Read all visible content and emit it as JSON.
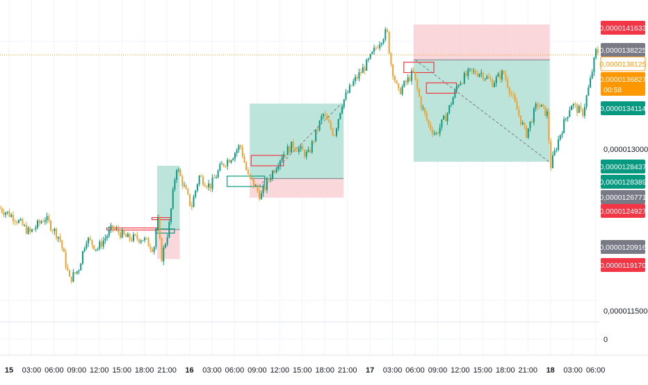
{
  "chart_data": {
    "type": "candlestick",
    "x_ticks": [
      {
        "label": "15",
        "hour": 0,
        "day": true
      },
      {
        "label": "03:00",
        "hour": 3
      },
      {
        "label": "06:00",
        "hour": 6
      },
      {
        "label": "09:00",
        "hour": 9
      },
      {
        "label": "12:00",
        "hour": 12
      },
      {
        "label": "15:00",
        "hour": 15
      },
      {
        "label": "18:00",
        "hour": 18
      },
      {
        "label": "21:00",
        "hour": 21
      },
      {
        "label": "16",
        "hour": 24,
        "day": true
      },
      {
        "label": "03:00",
        "hour": 27
      },
      {
        "label": "06:00",
        "hour": 30
      },
      {
        "label": "09:00",
        "hour": 33
      },
      {
        "label": "12:00",
        "hour": 36
      },
      {
        "label": "15:00",
        "hour": 39
      },
      {
        "label": "18:00",
        "hour": 42
      },
      {
        "label": "21:00",
        "hour": 45
      },
      {
        "label": "17",
        "hour": 48,
        "day": true
      },
      {
        "label": "03:00",
        "hour": 51
      },
      {
        "label": "06:00",
        "hour": 54
      },
      {
        "label": "09:00",
        "hour": 57
      },
      {
        "label": "12:00",
        "hour": 60
      },
      {
        "label": "15:00",
        "hour": 63
      },
      {
        "label": "18:00",
        "hour": 66
      },
      {
        "label": "21:00",
        "hour": 69
      },
      {
        "label": "18",
        "hour": 72,
        "day": true
      },
      {
        "label": "03:00",
        "hour": 75
      },
      {
        "label": "06:00",
        "hour": 78
      }
    ],
    "y_ticks": [
      {
        "label": "0,0000115000",
        "value": 1.15e-05
      },
      {
        "label": "0,0000130000",
        "value": 1.3e-05
      },
      {
        "label": "0",
        "value": 0
      }
    ],
    "price_labels": [
      {
        "label": "0,0000141633",
        "value": 1.41633e-05,
        "color": "#f23645"
      },
      {
        "label": "0,0000138225",
        "value": 1.38225e-05,
        "color": "#787b86"
      },
      {
        "label": "0,0000138125",
        "value": 1.38125e-05,
        "color": "#ffffff",
        "text_color": "#ff9800"
      },
      {
        "label": "0,0000136827",
        "value": 1.36827e-05,
        "color": "#ff9800",
        "sub": "00:58"
      },
      {
        "label": "0,0000134114",
        "value": 1.34114e-05,
        "color": "#089981"
      },
      {
        "label": "0,0000128437",
        "value": 1.28437e-05,
        "color": "#089981"
      },
      {
        "label": "0,0000128389",
        "value": 1.28389e-05,
        "color": "#089981"
      },
      {
        "label": "0,0000126771",
        "value": 1.26771e-05,
        "color": "#787b86"
      },
      {
        "label": "0,0000124927",
        "value": 1.24927e-05,
        "color": "#f23645"
      },
      {
        "label": "0,0000120916",
        "value": 1.20916e-05,
        "color": "#787b86"
      },
      {
        "label": "0,0000119170",
        "value": 1.1917e-05,
        "color": "#f23645"
      }
    ],
    "y_range": [
      1.13e-05,
      1.44e-05
    ],
    "x_range_hours": [
      -1.2,
      78.5
    ],
    "current_price": 1.36827e-05,
    "price_path": [
      [
        -1.2,
        1.24e-05
      ],
      [
        1.0,
        1.23e-05
      ],
      [
        3.0,
        1.215e-05
      ],
      [
        5.0,
        1.23e-05
      ],
      [
        7.0,
        1.21e-05
      ],
      [
        8.3,
        1.17e-05
      ],
      [
        9.5,
        1.18e-05
      ],
      [
        10.5,
        1.21e-05
      ],
      [
        12.0,
        1.2e-05
      ],
      [
        14.0,
        1.22e-05
      ],
      [
        16.0,
        1.21e-05
      ],
      [
        18.0,
        1.21e-05
      ],
      [
        19.5,
        1.2e-05
      ],
      [
        20.0,
        1.23e-05
      ],
      [
        20.5,
        1.19e-05
      ],
      [
        21.5,
        1.22e-05
      ],
      [
        22.5,
        1.28e-05
      ],
      [
        23.5,
        1.26e-05
      ],
      [
        24.5,
        1.24e-05
      ],
      [
        25.5,
        1.27e-05
      ],
      [
        27.0,
        1.26e-05
      ],
      [
        28.5,
        1.28e-05
      ],
      [
        30.0,
        1.29e-05
      ],
      [
        31.0,
        1.3e-05
      ],
      [
        32.0,
        1.27e-05
      ],
      [
        33.0,
        1.26e-05
      ],
      [
        33.7,
        1.25e-05
      ],
      [
        35.0,
        1.27e-05
      ],
      [
        36.5,
        1.29e-05
      ],
      [
        38.0,
        1.3e-05
      ],
      [
        40.0,
        1.29e-05
      ],
      [
        42.0,
        1.33e-05
      ],
      [
        43.5,
        1.31e-05
      ],
      [
        44.5,
        1.34e-05
      ],
      [
        46.0,
        1.36e-05
      ],
      [
        48.0,
        1.38e-05
      ],
      [
        49.5,
        1.4e-05
      ],
      [
        50.5,
        1.41e-05
      ],
      [
        51.0,
        1.38e-05
      ],
      [
        52.0,
        1.35e-05
      ],
      [
        53.0,
        1.36e-05
      ],
      [
        54.0,
        1.37e-05
      ],
      [
        55.0,
        1.34e-05
      ],
      [
        56.0,
        1.32e-05
      ],
      [
        57.0,
        1.31e-05
      ],
      [
        58.5,
        1.33e-05
      ],
      [
        60.0,
        1.36e-05
      ],
      [
        61.5,
        1.37e-05
      ],
      [
        63.0,
        1.37e-05
      ],
      [
        64.5,
        1.36e-05
      ],
      [
        66.0,
        1.37e-05
      ],
      [
        67.5,
        1.34e-05
      ],
      [
        69.0,
        1.31e-05
      ],
      [
        70.5,
        1.34e-05
      ],
      [
        71.8,
        1.33e-05
      ],
      [
        72.3,
        1.28e-05
      ],
      [
        73.5,
        1.31e-05
      ],
      [
        75.0,
        1.34e-05
      ],
      [
        76.5,
        1.33e-05
      ],
      [
        77.5,
        1.36e-05
      ],
      [
        78.3,
        1.39e-05
      ]
    ],
    "positions": [
      {
        "direction": "long",
        "t_start": 19.7,
        "t_end": 22.7,
        "entry": 1.2185e-05,
        "target": 1.28e-05,
        "stop": 1.19e-05
      },
      {
        "direction": "long",
        "t_start": 32.0,
        "t_end": 44.5,
        "entry": 1.26771e-05,
        "target": 1.34e-05,
        "stop": 1.24927e-05
      },
      {
        "direction": "short",
        "t_start": 53.8,
        "t_end": 71.9,
        "entry": 1.38225e-05,
        "target": 1.28389e-05,
        "stop": 1.41633e-05
      }
    ],
    "trend_lines": [
      {
        "t1": 33.2,
        "p1": 1.26e-05,
        "t2": 44.2,
        "p2": 1.34e-05
      },
      {
        "t1": 54.0,
        "p1": 1.38225e-05,
        "t2": 71.8,
        "p2": 1.28389e-05
      }
    ],
    "order_boxes": [
      {
        "t_start": 13.0,
        "t_end": 19.8,
        "p_top": 1.22e-05,
        "p_bottom": 1.218e-05,
        "color": "#f23645"
      },
      {
        "t_start": 19.0,
        "t_end": 21.5,
        "p_top": 1.23e-05,
        "p_bottom": 1.228e-05,
        "color": "#f23645"
      },
      {
        "t_start": 19.5,
        "t_end": 22.0,
        "p_top": 1.219e-05,
        "p_bottom": 1.215e-05,
        "color": "#089981"
      },
      {
        "t_start": 32.2,
        "t_end": 36.5,
        "p_top": 1.29e-05,
        "p_bottom": 1.28e-05,
        "color": "#f23645"
      },
      {
        "t_start": 29.0,
        "t_end": 34.0,
        "p_top": 1.27e-05,
        "p_bottom": 1.26e-05,
        "color": "#089981"
      },
      {
        "t_start": 52.5,
        "t_end": 56.5,
        "p_top": 1.38e-05,
        "p_bottom": 1.37e-05,
        "color": "#f23645"
      },
      {
        "t_start": 55.5,
        "t_end": 59.5,
        "p_top": 1.36e-05,
        "p_bottom": 1.35e-05,
        "color": "#f23645"
      }
    ],
    "colors": {
      "up": "#089981",
      "down": "#f0a02a",
      "profit_zone": "#b2dfd4",
      "loss_zone": "#f8d3d7",
      "price_line": "#ff9800",
      "grid": "#f0f3fa"
    },
    "grid": true
  }
}
